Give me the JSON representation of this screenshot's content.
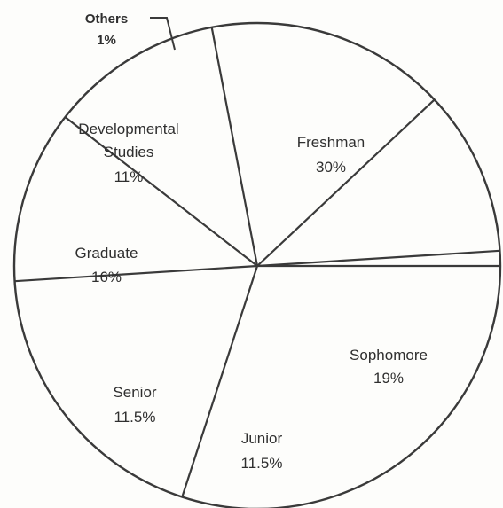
{
  "chart_data": {
    "type": "pie",
    "slices": [
      {
        "name": "Freshman",
        "value": 30,
        "label": "30%"
      },
      {
        "name": "Sophomore",
        "value": 19,
        "label": "19%"
      },
      {
        "name": "Junior",
        "value": 11.5,
        "label": "11.5%"
      },
      {
        "name": "Senior",
        "value": 11.5,
        "label": "11.5%"
      },
      {
        "name": "Graduate",
        "value": 16,
        "label": "16%"
      },
      {
        "name": "Developmental Studies",
        "value": 11,
        "label": "11%"
      },
      {
        "name": "Others",
        "value": 1,
        "label": "1%"
      }
    ],
    "colors": {
      "line": "#3a3a3a",
      "fill": "#fdfdfb",
      "text": "#2f2f2f"
    }
  }
}
